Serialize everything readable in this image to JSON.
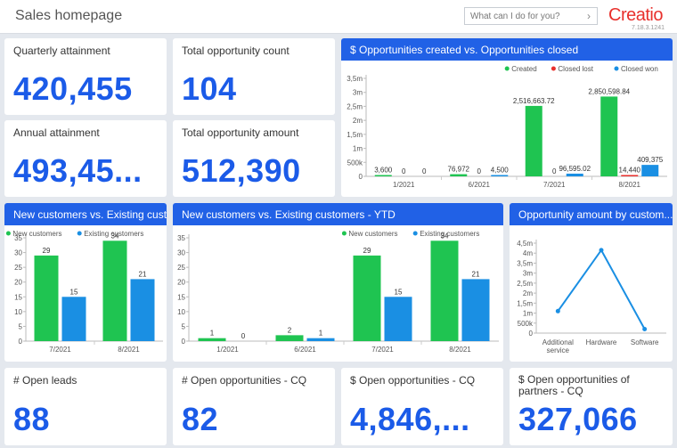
{
  "header": {
    "title": "Sales homepage",
    "search_placeholder": "What can I do for you?",
    "logo": "Creatio",
    "version": "7.18.3.1241"
  },
  "kpis": {
    "quarterly": {
      "label": "Quarterly attainment",
      "value": "420,455"
    },
    "opp_count": {
      "label": "Total opportunity count",
      "value": "104"
    },
    "annual": {
      "label": "Annual attainment",
      "value": "493,45..."
    },
    "opp_amount": {
      "label": "Total opportunity amount",
      "value": "512,390"
    },
    "open_leads": {
      "label": "# Open leads",
      "value": "88"
    },
    "open_opps": {
      "label": "# Open opportunities - CQ",
      "value": "82"
    },
    "open_opps_amt": {
      "label": "$ Open opportunities - CQ",
      "value": "4,846,..."
    },
    "partners": {
      "label": "$ Open opportunities of partners - CQ",
      "value": "327,066"
    }
  },
  "colors": {
    "accent": "#2161e6",
    "green": "#1fc451",
    "red": "#e8302c",
    "blue": "#1a8fe3"
  },
  "chart_data": [
    {
      "type": "bar",
      "title": "$ Opportunities created vs. Opportunities closed",
      "categories": [
        "1/2021",
        "6/2021",
        "7/2021",
        "8/2021"
      ],
      "series": [
        {
          "name": "Created",
          "values": [
            3600,
            76972,
            2516663.72,
            2850598.84
          ],
          "labels": [
            "3,600",
            "76,972",
            "2,516,663.72",
            "2,850,598.84"
          ]
        },
        {
          "name": "Closed lost",
          "values": [
            0,
            0,
            0,
            14440
          ],
          "labels": [
            "0",
            "0",
            "0",
            "14,440"
          ]
        },
        {
          "name": "Closed won",
          "values": [
            0,
            4500,
            96595.02,
            409375
          ],
          "labels": [
            "0",
            "4,500",
            "96,595.02",
            "409,375"
          ]
        }
      ],
      "yticks": [
        "0",
        "500k",
        "1m",
        "1,5m",
        "2m",
        "2,5m",
        "3m",
        "3,5m"
      ],
      "ylim": [
        0,
        3500000
      ],
      "legend": "top-right"
    },
    {
      "type": "bar",
      "title": "New customers vs. Existing cust...",
      "categories": [
        "7/2021",
        "8/2021"
      ],
      "series": [
        {
          "name": "New customers",
          "values": [
            29,
            34
          ]
        },
        {
          "name": "Existing customers",
          "values": [
            15,
            21
          ]
        }
      ],
      "yticks": [
        "0",
        "5",
        "10",
        "15",
        "20",
        "25",
        "30",
        "35"
      ],
      "ylim": [
        0,
        35
      ],
      "legend": "top-right"
    },
    {
      "type": "bar",
      "title": "New customers vs. Existing customers - YTD",
      "categories": [
        "1/2021",
        "6/2021",
        "7/2021",
        "8/2021"
      ],
      "series": [
        {
          "name": "New customers",
          "values": [
            1,
            2,
            29,
            34
          ]
        },
        {
          "name": "Existing customers",
          "values": [
            0,
            1,
            15,
            21
          ]
        }
      ],
      "yticks": [
        "0",
        "5",
        "10",
        "15",
        "20",
        "25",
        "30",
        "35"
      ],
      "ylim": [
        0,
        35
      ],
      "legend": "top-right"
    },
    {
      "type": "line",
      "title": "Opportunity amount by custom...",
      "categories": [
        "Additional service",
        "Hardware",
        "Software"
      ],
      "values": [
        1100000,
        4150000,
        200000
      ],
      "yticks": [
        "0",
        "500k",
        "1m",
        "1,5m",
        "2m",
        "2,5m",
        "3m",
        "3,5m",
        "4m",
        "4,5m"
      ],
      "ylim": [
        0,
        4500000
      ]
    }
  ]
}
